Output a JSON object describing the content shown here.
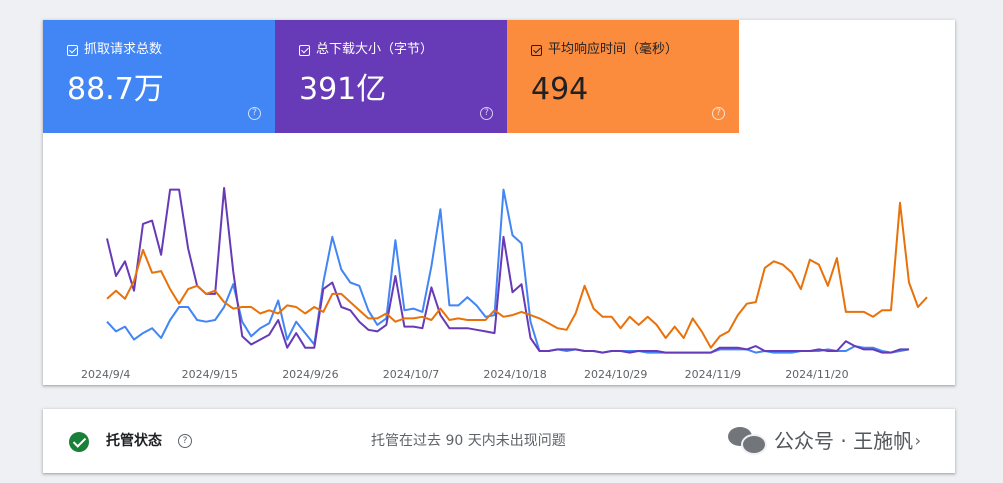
{
  "metrics": [
    {
      "label": "抓取请求总数",
      "value": "88.7万",
      "color": "#4285f4"
    },
    {
      "label": "总下载大小（字节）",
      "value": "391亿",
      "color": "#673ab7"
    },
    {
      "label": "平均响应时间（毫秒）",
      "value": "494",
      "color": "#fb8c3d"
    }
  ],
  "chart_data": {
    "type": "line",
    "x_tick_labels": [
      "2024/9/4",
      "2024/9/15",
      "2024/9/26",
      "2024/10/7",
      "2024/10/18",
      "2024/10/29",
      "2024/11/9",
      "2024/11/20"
    ],
    "ylim": [
      0,
      100
    ],
    "series": [
      {
        "color": "#4285f4",
        "values": [
          18,
          12,
          15,
          7,
          11,
          14,
          8,
          19,
          27,
          27,
          19,
          18,
          19,
          27,
          41,
          18,
          9,
          14,
          17,
          31,
          7,
          18,
          11,
          4,
          42,
          70,
          50,
          42,
          40,
          25,
          16,
          20,
          68,
          25,
          26,
          24,
          52,
          87,
          28,
          28,
          33,
          28,
          21,
          22,
          99,
          71,
          66,
          18,
          0,
          0,
          1,
          0,
          1,
          0,
          0,
          -1,
          0,
          0,
          0,
          0,
          -1,
          -1,
          -1,
          -1,
          -1,
          -1,
          -1,
          -1,
          1,
          1,
          1,
          1,
          -1,
          0,
          -1,
          -1,
          -1,
          0,
          0,
          0,
          1,
          0,
          0,
          3,
          2,
          2,
          0,
          -1,
          0,
          1
        ]
      },
      {
        "color": "#673ab7",
        "values": [
          69,
          46,
          55,
          37,
          78,
          80,
          59,
          99,
          99,
          63,
          40,
          35,
          35,
          100,
          49,
          9,
          4,
          7,
          10,
          19,
          2,
          11,
          2,
          2,
          38,
          42,
          27,
          25,
          18,
          13,
          12,
          16,
          46,
          15,
          15,
          14,
          39,
          22,
          14,
          14,
          14,
          13,
          12,
          11,
          70,
          36,
          41,
          8,
          0,
          0,
          1,
          1,
          1,
          0,
          0,
          -1,
          0,
          0,
          -1,
          0,
          0,
          0,
          -1,
          -1,
          -1,
          -1,
          -1,
          -1,
          2,
          2,
          2,
          1,
          3,
          0,
          0,
          0,
          0,
          0,
          0,
          1,
          0,
          0,
          6,
          3,
          1,
          1,
          -1,
          -1,
          1,
          1
        ]
      },
      {
        "color": "#e8710a",
        "values": [
          32,
          37,
          32,
          43,
          62,
          48,
          49,
          38,
          29,
          38,
          40,
          35,
          37,
          30,
          26,
          27,
          27,
          23,
          25,
          23,
          28,
          27,
          23,
          27,
          24,
          35,
          35,
          30,
          25,
          20,
          20,
          23,
          18,
          20,
          20,
          21,
          19,
          26,
          19,
          20,
          19,
          19,
          19,
          25,
          21,
          22,
          24,
          22,
          20,
          17,
          14,
          13,
          23,
          40,
          26,
          21,
          21,
          14,
          21,
          16,
          21,
          16,
          8,
          15,
          8,
          20,
          12,
          2,
          9,
          12,
          22,
          29,
          30,
          51,
          55,
          53,
          48,
          38,
          56,
          53,
          40,
          57,
          24,
          24,
          24,
          21,
          25,
          25,
          91,
          42,
          27,
          33
        ]
      }
    ]
  },
  "status": {
    "title": "托管状态",
    "message": "托管在过去 90 天内未出现问题",
    "chevron": "›"
  },
  "watermark": "公众号 · 王施帆"
}
